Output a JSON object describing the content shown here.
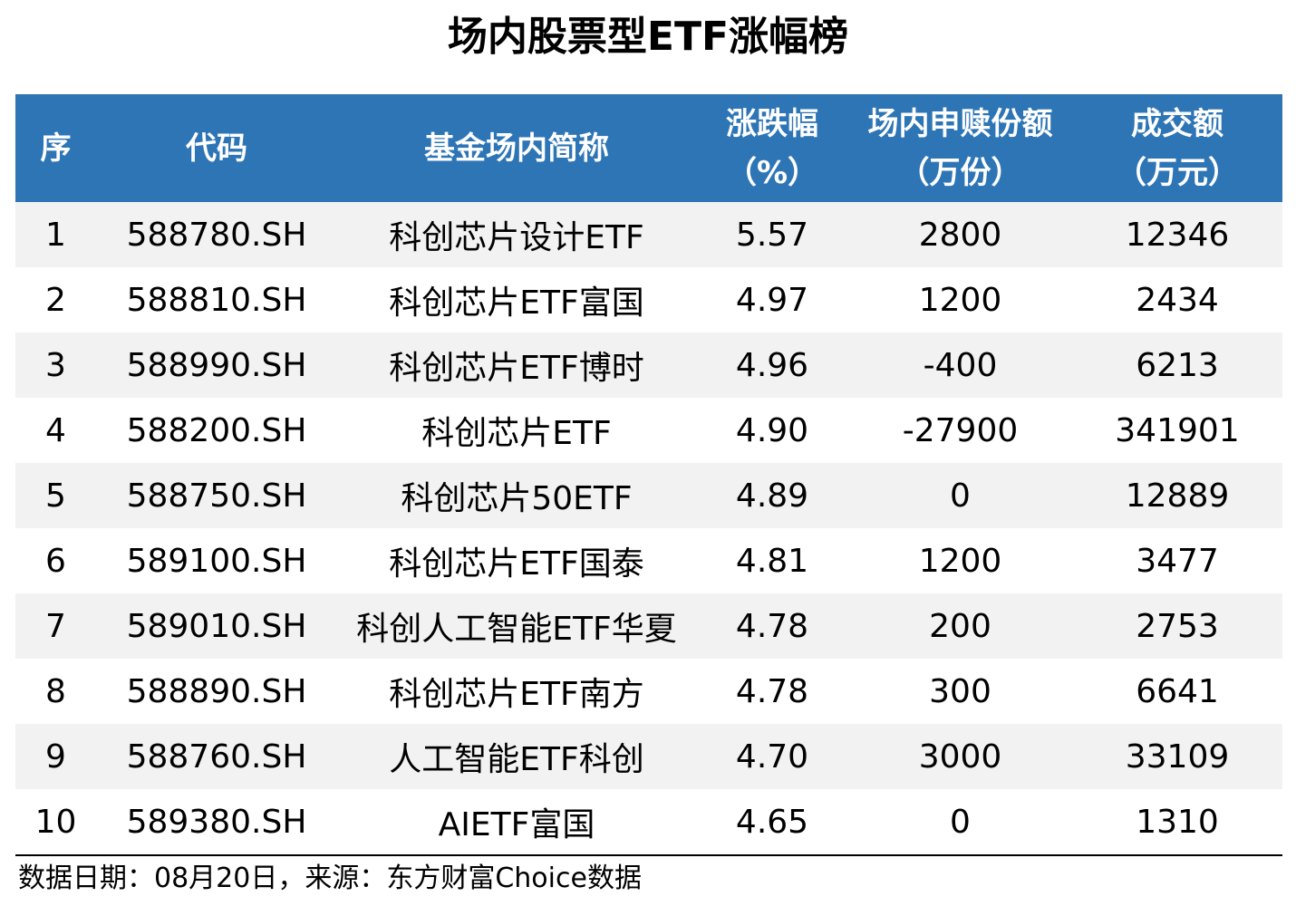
{
  "title": "场内股票型ETF涨幅榜",
  "headers": [
    {
      "line1": "序",
      "line2": ""
    },
    {
      "line1": "代码",
      "line2": ""
    },
    {
      "line1": "基金场内简称",
      "line2": ""
    },
    {
      "line1": "涨跌幅",
      "line2": "（%）"
    },
    {
      "line1": "场内申赎份额",
      "line2": "（万份）"
    },
    {
      "line1": "成交额",
      "line2": "（万元）"
    }
  ],
  "rows": [
    [
      "1",
      "588780.SH",
      "科创芯片设计ETF",
      "5.57",
      "2800",
      "12346"
    ],
    [
      "2",
      "588810.SH",
      "科创芯片ETF富国",
      "4.97",
      "1200",
      "2434"
    ],
    [
      "3",
      "588990.SH",
      "科创芯片ETF博时",
      "4.96",
      "-400",
      "6213"
    ],
    [
      "4",
      "588200.SH",
      "科创芯片ETF",
      "4.90",
      "-27900",
      "341901"
    ],
    [
      "5",
      "588750.SH",
      "科创芯片50ETF",
      "4.89",
      "0",
      "12889"
    ],
    [
      "6",
      "589100.SH",
      "科创芯片ETF国泰",
      "4.81",
      "1200",
      "3477"
    ],
    [
      "7",
      "589010.SH",
      "科创人工智能ETF华夏",
      "4.78",
      "200",
      "2753"
    ],
    [
      "8",
      "588890.SH",
      "科创芯片ETF南方",
      "4.78",
      "300",
      "6641"
    ],
    [
      "9",
      "588760.SH",
      "人工智能ETF科创",
      "4.70",
      "3000",
      "33109"
    ],
    [
      "10",
      "589380.SH",
      "AIETF富国",
      "4.65",
      "0",
      "1310"
    ]
  ],
  "footer": "数据日期：08月20日，来源：东方财富Choice数据",
  "colors": {
    "header_bg": "#2e75b6",
    "stripe": "#f2f2f2"
  }
}
